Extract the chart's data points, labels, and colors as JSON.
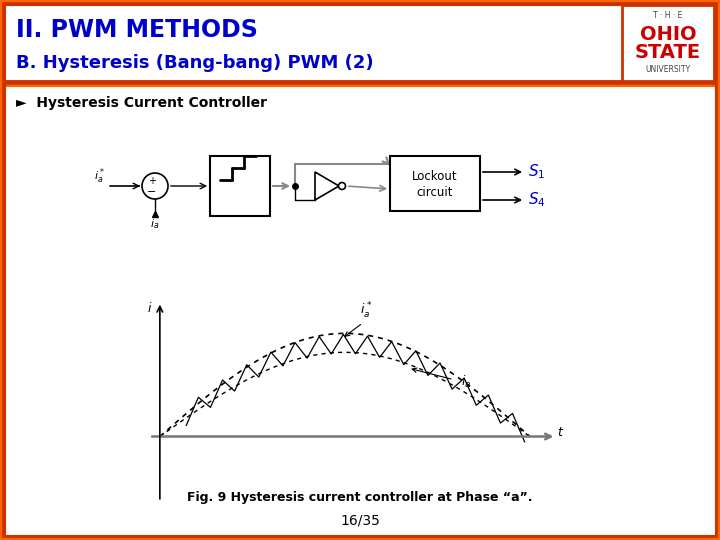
{
  "title_line1": "II. PWM METHODS",
  "title_line2": "B. Hysteresis (Bang-bang) PWM (2)",
  "title_color": "#0000CC",
  "border_color_outer": "#CC3300",
  "border_color_inner": "#FF6600",
  "bullet_text": "Ø  Hysteresis Current Controller",
  "fig_caption": "Fig. 9 Hysteresis current controller at Phase “a”.",
  "page_number": "16/35",
  "S1_label": "$S_1$",
  "S4_label": "$S_4$",
  "signal_color": "#0000CC",
  "logo_text1": "T · H · E",
  "logo_ohio": "OHIO",
  "logo_state": "STATE",
  "logo_univ": "UNIVERSITY"
}
